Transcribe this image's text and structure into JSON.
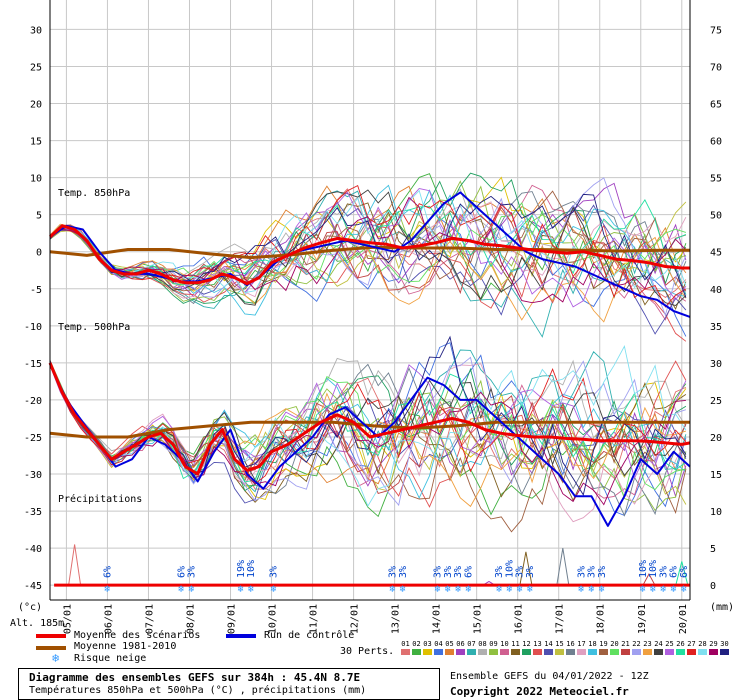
{
  "chart_data": {
    "type": "line",
    "x_dates": [
      "05/01",
      "06/01",
      "07/01",
      "08/01",
      "09/01",
      "10/01",
      "11/01",
      "12/01",
      "13/01",
      "14/01",
      "15/01",
      "16/01",
      "17/01",
      "18/01",
      "19/01",
      "20/01"
    ],
    "x_range": [
      4.6,
      20.2
    ],
    "left_axis": {
      "unit": "(°c)",
      "ticks": [
        30,
        25,
        20,
        15,
        10,
        5,
        0,
        -5,
        -10,
        -15,
        -20,
        -25,
        -30,
        -35,
        -40,
        -45
      ],
      "range": [
        -47,
        30
      ]
    },
    "right_axis": {
      "unit": "(mm)",
      "ticks": [
        75,
        70,
        65,
        60,
        55,
        50,
        45,
        40,
        35,
        30,
        25,
        20,
        15,
        10,
        5,
        0
      ]
    },
    "panels": [
      {
        "label": "Temp. 850hPa"
      },
      {
        "label": "Temp. 500hPa"
      },
      {
        "label": "Précipitations"
      }
    ],
    "series_850": [
      {
        "name": "Moyenne des scénarios",
        "color": "#ee0000",
        "x": [
          4.6,
          4.9,
          5.2,
          5.5,
          5.8,
          6.1,
          6.4,
          6.7,
          7.0,
          7.3,
          7.6,
          7.9,
          8.2,
          8.5,
          8.8,
          9.1,
          9.4,
          9.7,
          10.0,
          10.4,
          10.8,
          11.2,
          11.6,
          12.0,
          12.4,
          12.8,
          13.2,
          13.6,
          14.0,
          14.4,
          14.8,
          15.2,
          15.6,
          16.0,
          16.4,
          16.8,
          17.2,
          17.6,
          18.0,
          18.4,
          18.8,
          19.2,
          19.6,
          20.0,
          20.2
        ],
        "y": [
          2,
          3.5,
          3,
          1.5,
          -1,
          -2.5,
          -3,
          -3,
          -2.5,
          -3,
          -3.8,
          -4.2,
          -4.2,
          -3.8,
          -3,
          -3.5,
          -4.3,
          -3.5,
          -1.5,
          -0.5,
          0.5,
          1.2,
          1.8,
          1.5,
          1.2,
          1,
          0.5,
          0.8,
          1.2,
          1.8,
          1.5,
          1,
          0.8,
          0.5,
          0.2,
          0,
          -0.2,
          0,
          -0.5,
          -1,
          -1.2,
          -1.5,
          -2,
          -2.2,
          -2.2
        ]
      },
      {
        "name": "Moyenne 1981-2010",
        "color": "#a05000",
        "x": [
          4.6,
          5.5,
          6.5,
          7.5,
          8.5,
          9.5,
          10.5,
          11.5,
          12.5,
          13.5,
          14.5,
          15.5,
          16.5,
          17.5,
          18.5,
          19.5,
          20.2
        ],
        "y": [
          0,
          -0.5,
          0.3,
          0.3,
          -0.3,
          -0.8,
          -0.4,
          0.2,
          0.6,
          0.5,
          0.5,
          0.3,
          0.3,
          0.2,
          0.1,
          0.2,
          0.2
        ]
      },
      {
        "name": "Run de contrôle",
        "color": "#0000dd",
        "x": [
          4.6,
          5.0,
          5.4,
          5.8,
          6.2,
          6.6,
          7.0,
          7.4,
          7.8,
          8.2,
          8.6,
          9.0,
          9.4,
          9.8,
          10.2,
          10.6,
          11.0,
          11.4,
          11.8,
          12.2,
          12.6,
          13.0,
          13.4,
          13.8,
          14.2,
          14.6,
          15.0,
          15.4,
          15.8,
          16.2,
          16.6,
          17.0,
          17.4,
          17.8,
          18.2,
          18.6,
          19.0,
          19.4,
          19.8,
          20.2
        ],
        "y": [
          2,
          3.5,
          3,
          0,
          -2.5,
          -3,
          -3,
          -3.5,
          -4,
          -4,
          -3.5,
          -3,
          -4.5,
          -3,
          -1,
          0,
          0.5,
          1,
          1.5,
          1,
          0.5,
          0,
          1.5,
          4,
          6.5,
          8,
          6,
          4,
          2,
          0,
          -1,
          -1.5,
          -2,
          -3,
          -4,
          -5,
          -6,
          -6.5,
          -8,
          -8.8
        ]
      }
    ],
    "series_500": [
      {
        "name": "Moyenne des scénarios",
        "color": "#ee0000",
        "x": [
          4.6,
          4.9,
          5.2,
          5.5,
          5.8,
          6.1,
          6.4,
          6.7,
          7.0,
          7.3,
          7.6,
          7.9,
          8.2,
          8.5,
          8.8,
          9.1,
          9.4,
          9.7,
          10.0,
          10.4,
          10.8,
          11.2,
          11.6,
          12.0,
          12.4,
          12.8,
          13.2,
          13.6,
          14.0,
          14.4,
          14.8,
          15.2,
          15.6,
          16.0,
          16.4,
          16.8,
          17.2,
          17.6,
          18.0,
          18.4,
          18.8,
          19.2,
          19.6,
          20.0,
          20.2
        ],
        "y": [
          -15,
          -19,
          -22,
          -24,
          -26,
          -28,
          -27,
          -26,
          -25,
          -24.5,
          -26,
          -29,
          -30,
          -26,
          -24,
          -28,
          -29.5,
          -29,
          -27,
          -26,
          -24.5,
          -23,
          -22,
          -23,
          -25,
          -24.5,
          -24,
          -23.5,
          -23,
          -22.5,
          -23,
          -24,
          -24.5,
          -24.8,
          -25,
          -25,
          -25.2,
          -25.3,
          -25.5,
          -25.5,
          -25.5,
          -25.6,
          -25.8,
          -26,
          -25.8
        ]
      },
      {
        "name": "Moyenne 1981-2010",
        "color": "#a05000",
        "x": [
          4.6,
          5.5,
          6.5,
          7.5,
          8.5,
          9.5,
          10.5,
          11.5,
          12.5,
          13.5,
          14.5,
          15.5,
          16.5,
          17.5,
          18.5,
          19.5,
          20.2
        ],
        "y": [
          -24.5,
          -25,
          -25,
          -24,
          -23.5,
          -23,
          -23,
          -23,
          -23.5,
          -23.8,
          -23.5,
          -23,
          -23,
          -23,
          -23,
          -23,
          -23
        ]
      },
      {
        "name": "Run de contrôle",
        "color": "#0000dd",
        "x": [
          4.6,
          5.0,
          5.4,
          5.8,
          6.2,
          6.6,
          7.0,
          7.4,
          7.8,
          8.2,
          8.6,
          9.0,
          9.4,
          9.8,
          10.2,
          10.6,
          11.0,
          11.4,
          11.8,
          12.2,
          12.6,
          13.0,
          13.4,
          13.8,
          14.2,
          14.6,
          15.0,
          15.4,
          15.8,
          16.2,
          16.6,
          17.0,
          17.4,
          17.8,
          18.2,
          18.6,
          19.0,
          19.4,
          19.8,
          20.2
        ],
        "y": [
          -15,
          -20,
          -23,
          -26,
          -29,
          -28,
          -25,
          -26,
          -28,
          -31,
          -27,
          -24,
          -30,
          -32,
          -29,
          -27,
          -25,
          -22,
          -21,
          -23,
          -25,
          -23,
          -20,
          -17,
          -18,
          -20,
          -20,
          -22,
          -24,
          -26,
          -28,
          -30,
          -33,
          -33,
          -37,
          -33,
          -28,
          -30,
          -27,
          -29
        ]
      }
    ],
    "precip_ensemble": [
      {
        "x": 5.2,
        "y": 5.5
      },
      {
        "x": 15.3,
        "y": 0.5
      },
      {
        "x": 16.2,
        "y": 4.5
      },
      {
        "x": 17.1,
        "y": 5
      },
      {
        "x": 19.2,
        "y": 1.5
      },
      {
        "x": 20.0,
        "y": 3.2
      }
    ],
    "snow_markers": [
      {
        "x": 6.0,
        "pct": "6%"
      },
      {
        "x": 7.8,
        "pct": "6%"
      },
      {
        "x": 8.05,
        "pct": "3%"
      },
      {
        "x": 9.25,
        "pct": "19%"
      },
      {
        "x": 9.5,
        "pct": "10%"
      },
      {
        "x": 10.05,
        "pct": "3%"
      },
      {
        "x": 12.95,
        "pct": "3%"
      },
      {
        "x": 13.2,
        "pct": "3%"
      },
      {
        "x": 14.05,
        "pct": "3%"
      },
      {
        "x": 14.3,
        "pct": "3%"
      },
      {
        "x": 14.55,
        "pct": "3%"
      },
      {
        "x": 14.8,
        "pct": "6%"
      },
      {
        "x": 15.55,
        "pct": "3%"
      },
      {
        "x": 15.8,
        "pct": "10%"
      },
      {
        "x": 16.05,
        "pct": "3%"
      },
      {
        "x": 16.3,
        "pct": "3%"
      },
      {
        "x": 17.55,
        "pct": "3%"
      },
      {
        "x": 17.8,
        "pct": "3%"
      },
      {
        "x": 18.05,
        "pct": "3%"
      },
      {
        "x": 19.05,
        "pct": "10%"
      },
      {
        "x": 19.3,
        "pct": "10%"
      },
      {
        "x": 19.55,
        "pct": "3%"
      },
      {
        "x": 19.8,
        "pct": "6%"
      },
      {
        "x": 20.05,
        "pct": "6%"
      }
    ],
    "colors": {
      "mean": "#ee0000",
      "climate": "#a05000",
      "control": "#0000dd",
      "grid": "#c8c8c8"
    }
  },
  "legend": {
    "alt": "Alt. 185m",
    "mean": "Moyenne des scénarios",
    "climate": "Moyenne 1981-2010",
    "snow": "Risque neige",
    "control": "Run de contrôle",
    "perts_label": "30 Perts.",
    "pert_numbers": [
      "01",
      "02",
      "03",
      "04",
      "05",
      "06",
      "07",
      "08",
      "09",
      "10",
      "11",
      "12",
      "13",
      "14",
      "15",
      "16",
      "17",
      "18",
      "19",
      "20",
      "21",
      "22",
      "23",
      "24",
      "25",
      "26",
      "27",
      "28",
      "29",
      "30"
    ],
    "pert_colors": [
      "#e07070",
      "#40b040",
      "#e0c000",
      "#4070e0",
      "#e08030",
      "#a040c0",
      "#30b0b0",
      "#b0b0b0",
      "#90c040",
      "#d06090",
      "#806020",
      "#20a060",
      "#e05050",
      "#5050b0",
      "#c0c040",
      "#708090",
      "#e0a0c0",
      "#40c0e0",
      "#a06040",
      "#60e060",
      "#c04040",
      "#a0a0f0",
      "#f0a040",
      "#404040",
      "#b060e0",
      "#20e0a0",
      "#e02020",
      "#80e0f0",
      "#a00060",
      "#202080"
    ]
  },
  "footer": {
    "title": "Diagramme des ensembles GEFS sur 384h : 45.4N 8.7E",
    "subtitle": "Températures 850hPa et 500hPa (°C) , précipitations (mm)",
    "run": "Ensemble GEFS du 04/01/2022 - 12Z",
    "copyright": "Copyright 2022 Meteociel.fr"
  }
}
